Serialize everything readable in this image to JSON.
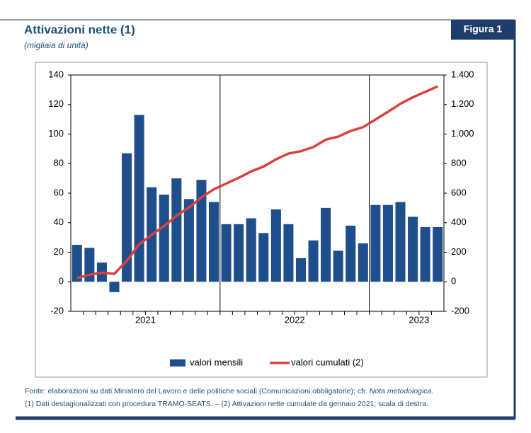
{
  "header": {
    "title": "Attivazioni nette (1)",
    "subtitle": "(migliaia di unità)",
    "figure_label": "Figura 1"
  },
  "chart_data": {
    "type": "bar_line",
    "categories": [
      null,
      null,
      null,
      null,
      null,
      "2021",
      null,
      null,
      null,
      null,
      null,
      null,
      null,
      null,
      null,
      null,
      null,
      "2022",
      null,
      null,
      null,
      null,
      null,
      null,
      null,
      null,
      null,
      "2023",
      null,
      null
    ],
    "series": [
      {
        "name": "valori mensili",
        "type": "bar",
        "color": "#1f4e8c",
        "values": [
          25,
          23,
          13,
          -7,
          87,
          113,
          64,
          59,
          70,
          56,
          69,
          54,
          39,
          39,
          43,
          33,
          49,
          39,
          16,
          28,
          50,
          21,
          38,
          26,
          52,
          52,
          54,
          44,
          37,
          37
        ]
      },
      {
        "name": "valori cumulati (2)",
        "type": "line",
        "axis": "y2",
        "color": "#d9413e",
        "values": [
          25,
          48,
          61,
          54,
          141,
          254,
          318,
          377,
          447,
          503,
          572,
          626,
          665,
          704,
          747,
          780,
          829,
          868,
          884,
          912,
          962,
          983,
          1021,
          1047,
          1099,
          1151,
          1205,
          1249,
          1286,
          1323
        ]
      }
    ],
    "ylim": [
      -20,
      140
    ],
    "yticks": [
      -20,
      0,
      20,
      40,
      60,
      80,
      100,
      120,
      140
    ],
    "y2lim": [
      -200,
      1400
    ],
    "y2ticks": [
      -200,
      0,
      {
        "value": 200,
        "label": "200"
      },
      {
        "value": 400,
        "label": "400"
      },
      {
        "value": 600,
        "label": "600"
      },
      {
        "value": 800,
        "label": "800"
      },
      {
        "value": 1000,
        "label": "1.000"
      },
      {
        "value": 1200,
        "label": "1.200"
      },
      {
        "value": 1400,
        "label": "1.400"
      }
    ],
    "legend": "bottom"
  },
  "footer": {
    "source": "Fonte: elaborazioni su dati Ministero del Lavoro e delle politiche sociali (Comunicazioni obbligatorie); cfr. ",
    "source_ref": "Nota metodologica.",
    "note": "(1) Dati destagionalizzati con procedura TRAMO-SEATS. – (2) Attivazioni nette cumulate da gennaio 2021; scala di destra."
  }
}
